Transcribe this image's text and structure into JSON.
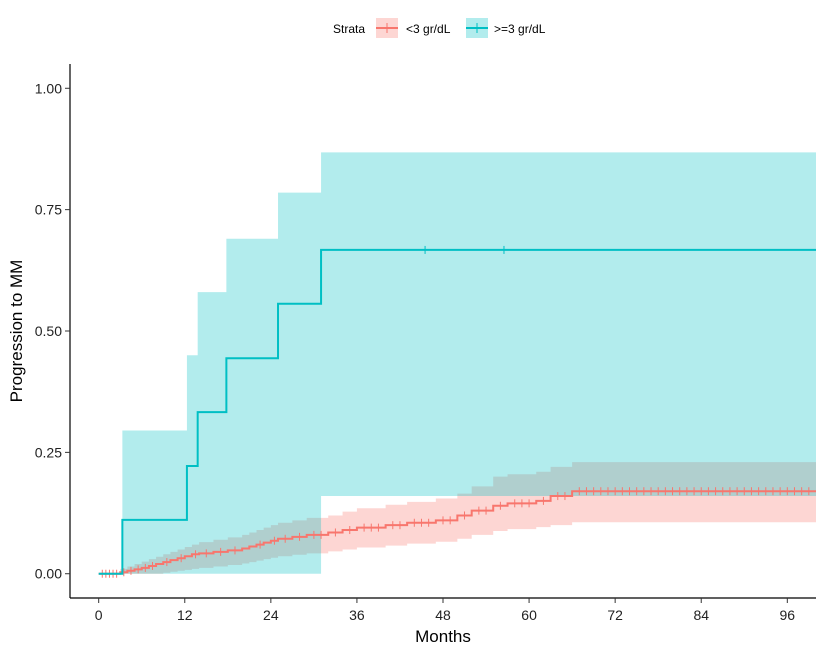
{
  "chart_data": {
    "type": "line",
    "subtype": "kaplan-meier-cumulative-incidence",
    "title": "",
    "xlabel": "Months",
    "ylabel": "Progression to MM",
    "xlim": [
      -4,
      100
    ],
    "ylim": [
      -0.05,
      1.05
    ],
    "x_ticks": [
      0,
      12,
      24,
      36,
      48,
      60,
      72,
      84,
      96
    ],
    "x_tick_labels": [
      "0",
      "12",
      "24",
      "36",
      "48",
      "60",
      "72",
      "84",
      "96"
    ],
    "y_ticks": [
      0,
      0.25,
      0.5,
      0.75,
      1.0
    ],
    "y_tick_labels": [
      "0.00",
      "0.25",
      "0.50",
      "0.75",
      "1.00"
    ],
    "grid": false,
    "legend": {
      "title": "Strata",
      "placement": "top",
      "entries": [
        "<3 gr/dL",
        ">=3 gr/dL"
      ]
    },
    "series": [
      {
        "name": "<3 gr/dL",
        "color": "#F8766D",
        "band_color": "#F8766D",
        "x": [
          0,
          3,
          4,
          5,
          6,
          7,
          8,
          9,
          10,
          11,
          12,
          13,
          14,
          16,
          18,
          20,
          21,
          22,
          23,
          24,
          25,
          27,
          29,
          32,
          34,
          36,
          40,
          43,
          47,
          50,
          52,
          55,
          57,
          61,
          63,
          66,
          100
        ],
        "y": [
          0,
          0.003,
          0.006,
          0.009,
          0.012,
          0.016,
          0.02,
          0.024,
          0.028,
          0.032,
          0.036,
          0.04,
          0.042,
          0.045,
          0.048,
          0.052,
          0.056,
          0.06,
          0.064,
          0.068,
          0.072,
          0.076,
          0.08,
          0.085,
          0.09,
          0.095,
          0.1,
          0.105,
          0.11,
          0.12,
          0.13,
          0.14,
          0.145,
          0.15,
          0.16,
          0.17,
          0.17
        ],
        "lower": [
          0,
          0,
          0,
          0,
          0,
          0,
          0,
          0.002,
          0.004,
          0.006,
          0.008,
          0.01,
          0.012,
          0.015,
          0.018,
          0.021,
          0.024,
          0.027,
          0.03,
          0.033,
          0.036,
          0.039,
          0.042,
          0.046,
          0.05,
          0.054,
          0.058,
          0.062,
          0.066,
          0.072,
          0.08,
          0.088,
          0.092,
          0.096,
          0.1,
          0.106,
          0.106
        ],
        "upper": [
          0,
          0.01,
          0.015,
          0.02,
          0.025,
          0.03,
          0.035,
          0.04,
          0.045,
          0.05,
          0.055,
          0.06,
          0.065,
          0.07,
          0.075,
          0.08,
          0.085,
          0.09,
          0.095,
          0.1,
          0.105,
          0.11,
          0.115,
          0.12,
          0.128,
          0.135,
          0.142,
          0.148,
          0.155,
          0.165,
          0.18,
          0.2,
          0.205,
          0.21,
          0.22,
          0.23,
          0.23
        ],
        "censor_x": [
          0.5,
          1,
          1.5,
          2,
          2.5,
          3.5,
          4.5,
          5.5,
          6.5,
          7.5,
          9.5,
          11.5,
          13.5,
          15,
          17,
          19,
          22.5,
          24.5,
          26,
          28,
          30,
          31,
          33,
          35,
          37,
          38,
          39,
          41,
          42,
          44,
          45,
          46,
          48,
          49,
          51,
          53,
          54,
          56,
          58,
          59,
          60,
          62,
          64,
          65,
          67,
          68,
          69,
          70,
          71,
          72,
          73,
          74,
          75,
          76,
          77,
          78,
          79,
          80,
          81,
          82,
          83,
          84,
          85,
          86,
          87,
          88,
          89,
          90,
          91,
          92,
          93,
          94,
          95,
          96,
          97,
          98,
          99
        ]
      },
      {
        "name": ">=3 gr/dL",
        "color": "#00BFC4",
        "band_color": "#00BFC4",
        "x": [
          0,
          3.3,
          12.3,
          13.8,
          17.8,
          25,
          31,
          100
        ],
        "y": [
          0,
          0.111,
          0.222,
          0.333,
          0.444,
          0.556,
          0.667,
          0.667
        ],
        "lower": [
          0,
          0,
          0,
          0,
          0,
          0,
          0.16,
          0.16
        ],
        "upper": [
          0,
          0.295,
          0.45,
          0.58,
          0.69,
          0.785,
          0.868,
          0.868
        ],
        "censor_x": [
          45.5,
          56.5
        ]
      }
    ]
  }
}
